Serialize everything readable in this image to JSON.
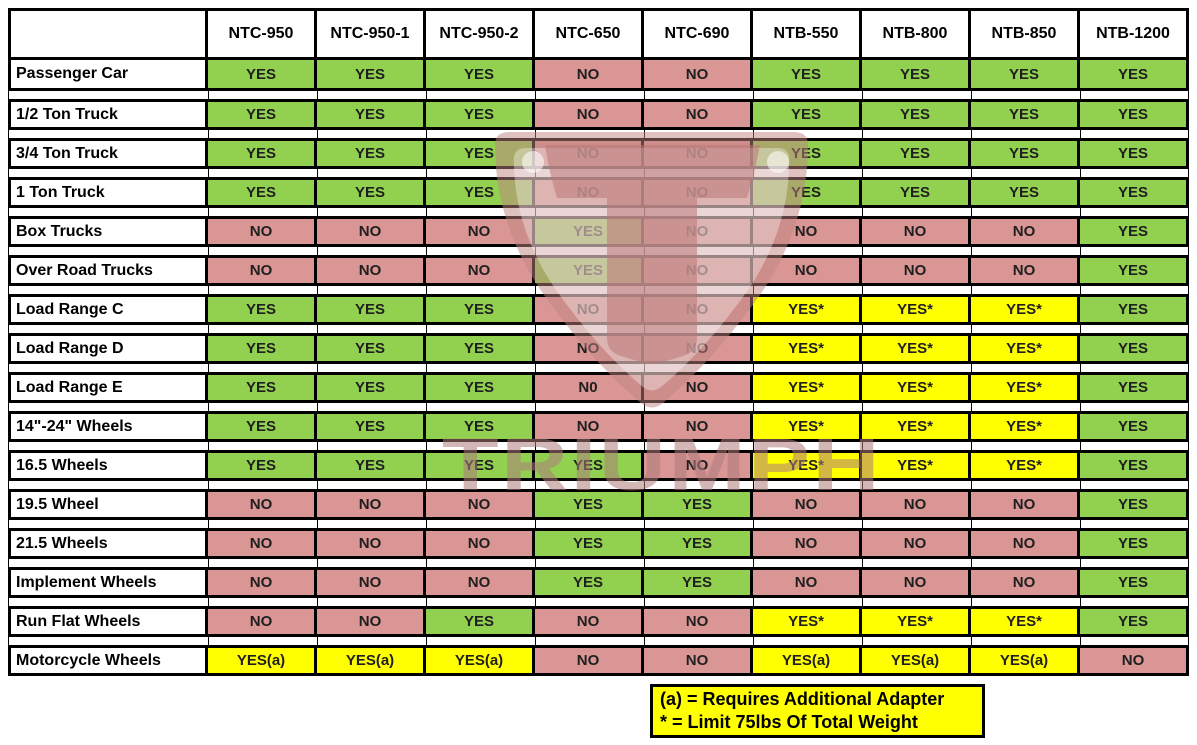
{
  "chart_data": {
    "type": "table",
    "columns": [
      "NTC-950",
      "NTC-950-1",
      "NTC-950-2",
      "NTC-650",
      "NTC-690",
      "NTB-550",
      "NTB-800",
      "NTB-850",
      "NTB-1200"
    ],
    "rows": [
      {
        "label": "Passenger Car",
        "values": [
          "YES",
          "YES",
          "YES",
          "NO",
          "NO",
          "YES",
          "YES",
          "YES",
          "YES"
        ]
      },
      {
        "label": "1/2 Ton Truck",
        "values": [
          "YES",
          "YES",
          "YES",
          "NO",
          "NO",
          "YES",
          "YES",
          "YES",
          "YES"
        ]
      },
      {
        "label": "3/4 Ton Truck",
        "values": [
          "YES",
          "YES",
          "YES",
          "NO",
          "NO",
          "YES",
          "YES",
          "YES",
          "YES"
        ]
      },
      {
        "label": "1 Ton Truck",
        "values": [
          "YES",
          "YES",
          "YES",
          "NO",
          "NO",
          "YES",
          "YES",
          "YES",
          "YES"
        ]
      },
      {
        "label": "Box Trucks",
        "values": [
          "NO",
          "NO",
          "NO",
          "YES",
          "NO",
          "NO",
          "NO",
          "NO",
          "YES"
        ]
      },
      {
        "label": "Over Road Trucks",
        "values": [
          "NO",
          "NO",
          "NO",
          "YES",
          "NO",
          "NO",
          "NO",
          "NO",
          "YES"
        ]
      },
      {
        "label": "Load Range C",
        "values": [
          "YES",
          "YES",
          "YES",
          "NO",
          "NO",
          "YES*",
          "YES*",
          "YES*",
          "YES"
        ]
      },
      {
        "label": "Load Range D",
        "values": [
          "YES",
          "YES",
          "YES",
          "NO",
          "NO",
          "YES*",
          "YES*",
          "YES*",
          "YES"
        ]
      },
      {
        "label": "Load Range E",
        "values": [
          "YES",
          "YES",
          "YES",
          "N0",
          "NO",
          "YES*",
          "YES*",
          "YES*",
          "YES"
        ]
      },
      {
        "label": "14\"-24\" Wheels",
        "values": [
          "YES",
          "YES",
          "YES",
          "NO",
          "NO",
          "YES*",
          "YES*",
          "YES*",
          "YES"
        ]
      },
      {
        "label": "16.5 Wheels",
        "values": [
          "YES",
          "YES",
          "YES",
          "YES",
          "NO",
          "YES*",
          "YES*",
          "YES*",
          "YES"
        ]
      },
      {
        "label": "19.5 Wheel",
        "values": [
          "NO",
          "NO",
          "NO",
          "YES",
          "YES",
          "NO",
          "NO",
          "NO",
          "YES"
        ]
      },
      {
        "label": "21.5 Wheels",
        "values": [
          "NO",
          "NO",
          "NO",
          "YES",
          "YES",
          "NO",
          "NO",
          "NO",
          "YES"
        ]
      },
      {
        "label": "Implement Wheels",
        "values": [
          "NO",
          "NO",
          "NO",
          "YES",
          "YES",
          "NO",
          "NO",
          "NO",
          "YES"
        ]
      },
      {
        "label": "Run Flat Wheels",
        "values": [
          "NO",
          "NO",
          "YES",
          "NO",
          "NO",
          "YES*",
          "YES*",
          "YES*",
          "YES"
        ]
      },
      {
        "label": "Motorcycle Wheels",
        "values": [
          "YES(a)",
          "YES(a)",
          "YES(a)",
          "NO",
          "NO",
          "YES(a)",
          "YES(a)",
          "YES(a)",
          "NO"
        ]
      }
    ],
    "notes": [
      "(a) = Requires Additional Adapter",
      "* = Limit 75lbs Of Total Weight"
    ],
    "legend_position": "bottom"
  },
  "style": {
    "value_colors": {
      "YES": "#92d050",
      "NO": "#d99694",
      "N0": "#d99694",
      "YES*": "#ffff00",
      "YES(a)": "#ffff00"
    },
    "notes_bg": "#ffff00",
    "grid_border": "#000000"
  },
  "watermark": {
    "text": "TRIUMPH"
  }
}
